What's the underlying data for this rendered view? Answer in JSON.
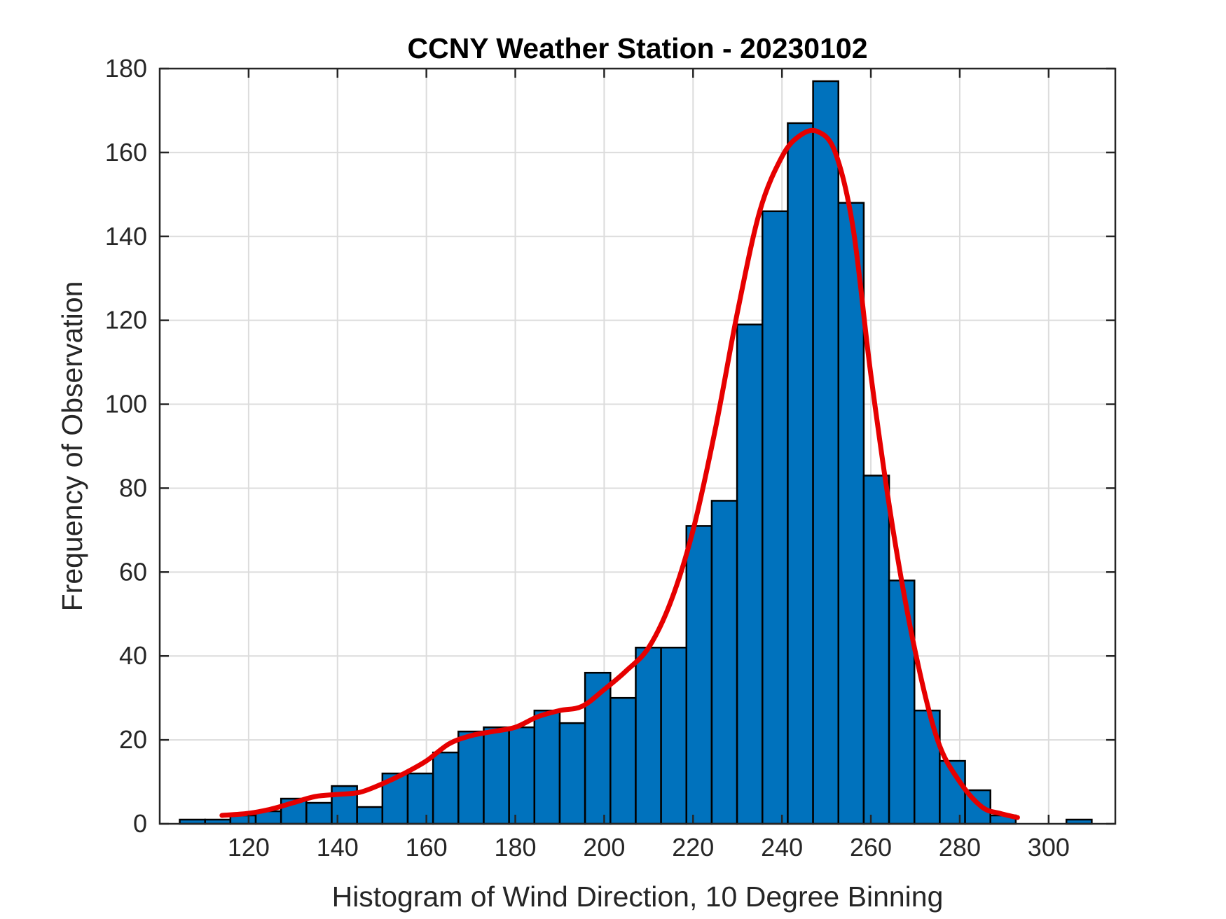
{
  "chart_data": {
    "type": "bar",
    "title": "CCNY Weather Station - 20230102",
    "xlabel": "Histogram of Wind Direction, 10 Degree Binning",
    "ylabel": "Frequency of Observation",
    "xlim": [
      100,
      315
    ],
    "ylim": [
      0,
      180
    ],
    "x_ticks": [
      120,
      140,
      160,
      180,
      200,
      220,
      240,
      260,
      280,
      300
    ],
    "y_ticks": [
      0,
      20,
      40,
      60,
      80,
      100,
      120,
      140,
      160,
      180
    ],
    "grid": true,
    "bin_width": 5.7,
    "bins": [
      {
        "start": 104.5,
        "value": 1
      },
      {
        "start": 110.2,
        "value": 1
      },
      {
        "start": 115.9,
        "value": 2
      },
      {
        "start": 121.6,
        "value": 3
      },
      {
        "start": 127.3,
        "value": 6
      },
      {
        "start": 133.0,
        "value": 5
      },
      {
        "start": 138.7,
        "value": 9
      },
      {
        "start": 144.4,
        "value": 4
      },
      {
        "start": 150.1,
        "value": 12
      },
      {
        "start": 155.8,
        "value": 12
      },
      {
        "start": 161.5,
        "value": 17
      },
      {
        "start": 167.2,
        "value": 22
      },
      {
        "start": 172.9,
        "value": 23
      },
      {
        "start": 178.6,
        "value": 23
      },
      {
        "start": 184.3,
        "value": 27
      },
      {
        "start": 190.0,
        "value": 24
      },
      {
        "start": 195.7,
        "value": 36
      },
      {
        "start": 201.4,
        "value": 30
      },
      {
        "start": 207.1,
        "value": 42
      },
      {
        "start": 212.8,
        "value": 42
      },
      {
        "start": 218.5,
        "value": 71
      },
      {
        "start": 224.2,
        "value": 77
      },
      {
        "start": 229.9,
        "value": 119
      },
      {
        "start": 235.6,
        "value": 146
      },
      {
        "start": 241.3,
        "value": 167
      },
      {
        "start": 247.0,
        "value": 177
      },
      {
        "start": 252.7,
        "value": 148
      },
      {
        "start": 258.4,
        "value": 83
      },
      {
        "start": 264.1,
        "value": 58
      },
      {
        "start": 269.8,
        "value": 27
      },
      {
        "start": 275.5,
        "value": 15
      },
      {
        "start": 281.2,
        "value": 8
      },
      {
        "start": 286.9,
        "value": 2
      },
      {
        "start": 292.6,
        "value": 0
      },
      {
        "start": 298.3,
        "value": 0
      },
      {
        "start": 304.0,
        "value": 1
      }
    ],
    "fit_curve": {
      "x": [
        114,
        120,
        125,
        130,
        135,
        140,
        145,
        150,
        155,
        160,
        165,
        170,
        175,
        180,
        185,
        190,
        195,
        200,
        205,
        210,
        215,
        220,
        225,
        230,
        235,
        240,
        244,
        248,
        252,
        256,
        260,
        265,
        270,
        275,
        280,
        285,
        289,
        293
      ],
      "y": [
        2,
        2.5,
        3.5,
        5,
        6.5,
        7,
        7.5,
        9.5,
        12,
        15,
        19,
        21,
        22,
        23,
        25.5,
        27,
        28,
        32,
        36.5,
        42,
        53,
        70,
        94,
        122,
        146,
        159,
        164,
        165,
        160,
        142,
        107,
        70,
        41,
        20,
        10,
        4,
        2.5,
        1.5
      ],
      "color": "#e60000"
    },
    "bar_color": "#0072bd",
    "bar_edge_color": "#000000"
  }
}
